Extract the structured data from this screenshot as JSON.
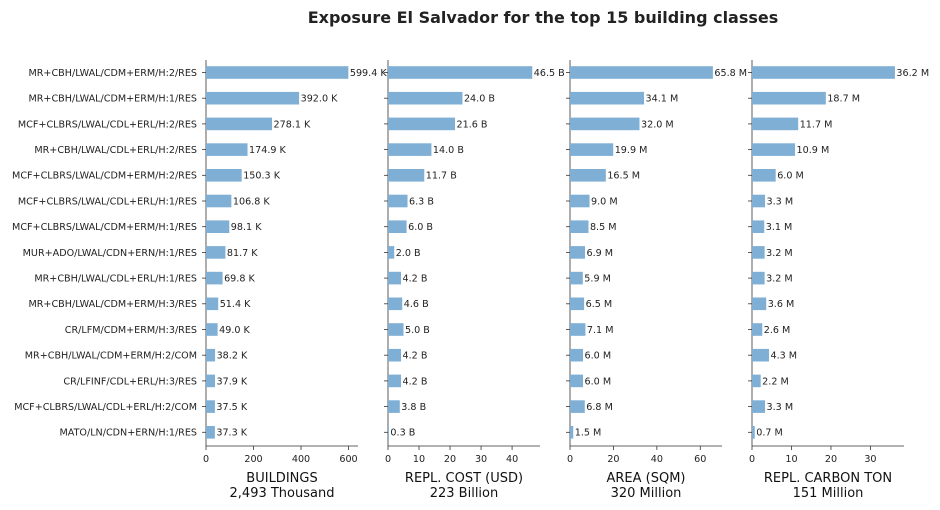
{
  "chart_data": {
    "type": "bar",
    "orientation": "horizontal",
    "title": "Exposure El Salvador for the top 15 building classes",
    "categories": [
      "MR+CBH/LWAL/CDM+ERM/H:2/RES",
      "MR+CBH/LWAL/CDM+ERM/H:1/RES",
      "MCF+CLBRS/LWAL/CDL+ERL/H:2/RES",
      "MR+CBH/LWAL/CDL+ERL/H:2/RES",
      "MCF+CLBRS/LWAL/CDM+ERM/H:2/RES",
      "MCF+CLBRS/LWAL/CDL+ERL/H:1/RES",
      "MCF+CLBRS/LWAL/CDM+ERM/H:1/RES",
      "MUR+ADO/LWAL/CDN+ERN/H:1/RES",
      "MR+CBH/LWAL/CDL+ERL/H:1/RES",
      "MR+CBH/LWAL/CDM+ERM/H:3/RES",
      "CR/LFM/CDM+ERM/H:3/RES",
      "MR+CBH/LWAL/CDM+ERM/H:2/COM",
      "CR/LFINF/CDL+ERL/H:3/RES",
      "MCF+CLBRS/LWAL/CDL+ERL/H:2/COM",
      "MATO/LN/CDN+ERN/H:1/RES"
    ],
    "panels": [
      {
        "xlabel": "BUILDINGS",
        "total": "2,493 Thousand",
        "xlim": [
          0,
          640
        ],
        "ticks": [
          0,
          200,
          400,
          600
        ],
        "values": [
          599.4,
          392.0,
          278.1,
          174.9,
          150.3,
          106.8,
          98.1,
          81.7,
          69.8,
          51.4,
          49.0,
          38.2,
          37.9,
          37.5,
          37.3
        ],
        "labels": [
          "599.4 K",
          "392.0 K",
          "278.1 K",
          "174.9 K",
          "150.3 K",
          "106.8 K",
          "98.1 K",
          "81.7 K",
          "69.8 K",
          "51.4 K",
          "49.0 K",
          "38.2 K",
          "37.9 K",
          "37.5 K",
          "37.3 K"
        ]
      },
      {
        "xlabel": "REPL. COST (USD)",
        "total": "223 Billion",
        "xlim": [
          0,
          49
        ],
        "ticks": [
          0,
          10,
          20,
          30,
          40
        ],
        "values": [
          46.5,
          24.0,
          21.6,
          14.0,
          11.7,
          6.3,
          6.0,
          2.0,
          4.2,
          4.6,
          5.0,
          4.2,
          4.2,
          3.8,
          0.3
        ],
        "labels": [
          "46.5 B",
          "24.0 B",
          "21.6 B",
          "14.0 B",
          "11.7 B",
          "6.3 B",
          "6.0 B",
          "2.0 B",
          "4.2 B",
          "4.6 B",
          "5.0 B",
          "4.2 B",
          "4.2 B",
          "3.8 B",
          "0.3 B"
        ]
      },
      {
        "xlabel": "AREA (SQM)",
        "total": "320 Million",
        "xlim": [
          0,
          70
        ],
        "ticks": [
          0,
          20,
          40,
          60
        ],
        "values": [
          65.8,
          34.1,
          32.0,
          19.9,
          16.5,
          9.0,
          8.5,
          6.9,
          5.9,
          6.5,
          7.1,
          6.0,
          6.0,
          6.8,
          1.5
        ],
        "labels": [
          "65.8 M",
          "34.1 M",
          "32.0 M",
          "19.9 M",
          "16.5 M",
          "9.0 M",
          "8.5 M",
          "6.9 M",
          "5.9 M",
          "6.5 M",
          "7.1 M",
          "6.0 M",
          "6.0 M",
          "6.8 M",
          "1.5 M"
        ]
      },
      {
        "xlabel": "REPL. CARBON TON",
        "total": "151 Million",
        "xlim": [
          0,
          38.5
        ],
        "ticks": [
          0,
          10,
          20,
          30
        ],
        "values": [
          36.2,
          18.7,
          11.7,
          10.9,
          6.0,
          3.3,
          3.1,
          3.2,
          3.2,
          3.6,
          2.6,
          4.3,
          2.2,
          3.3,
          0.7
        ],
        "labels": [
          "36.2 M",
          "18.7 M",
          "11.7 M",
          "10.9 M",
          "6.0 M",
          "3.3 M",
          "3.1 M",
          "3.2 M",
          "3.2 M",
          "3.6 M",
          "2.6 M",
          "4.3 M",
          "2.2 M",
          "3.3 M",
          "0.7 M"
        ]
      }
    ],
    "bar_color": "#7fafd4",
    "grid": false
  }
}
